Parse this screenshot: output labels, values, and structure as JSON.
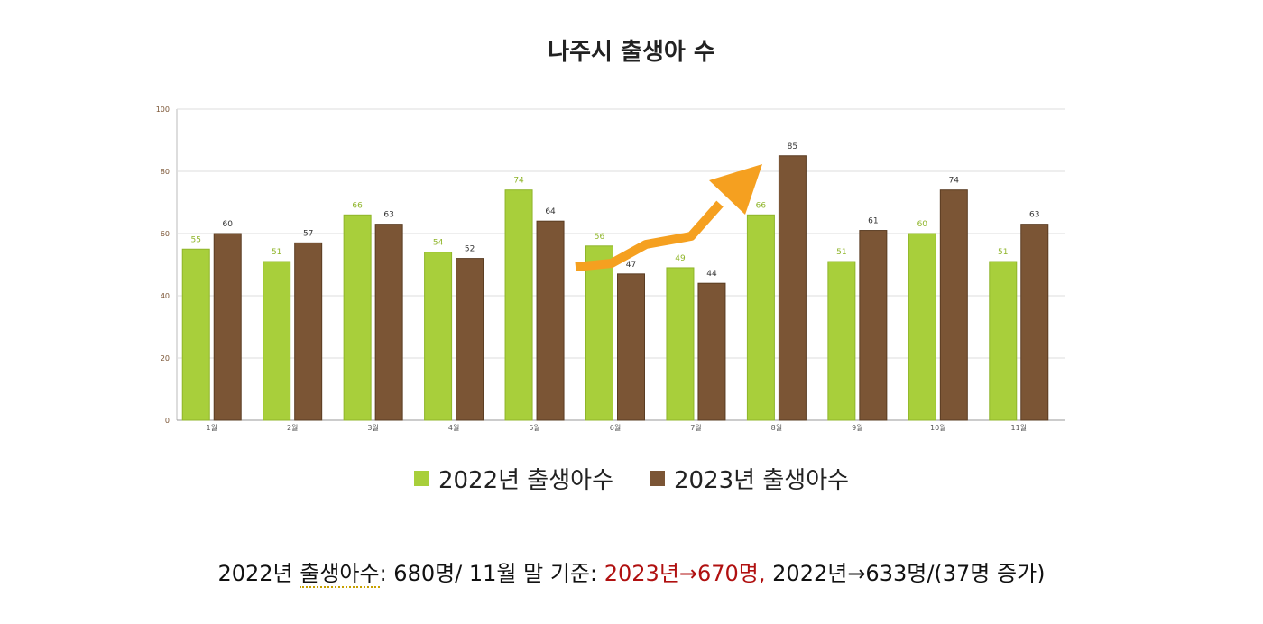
{
  "colors": {
    "series_2022": "#a8cf3b",
    "series_2023": "#7b5535",
    "arrow": "#f5a020",
    "grid": "#dddddd",
    "highlight_text": "#b01010"
  },
  "chart_data": {
    "type": "bar",
    "title": "나주시 출생아 수",
    "xlabel": "",
    "ylabel": "",
    "ylim": [
      0,
      100
    ],
    "yticks": [
      0,
      20,
      40,
      60,
      80,
      100
    ],
    "grid": true,
    "legend_position": "bottom",
    "categories": [
      "1월",
      "2월",
      "3월",
      "4월",
      "5월",
      "6월",
      "7월",
      "8월",
      "9월",
      "10월",
      "11월"
    ],
    "series": [
      {
        "name": "2022년 출생아수",
        "values": [
          55,
          51,
          66,
          54,
          74,
          56,
          49,
          66,
          51,
          60,
          51
        ]
      },
      {
        "name": "2023년 출생아수",
        "values": [
          60,
          57,
          63,
          52,
          64,
          47,
          44,
          85,
          61,
          74,
          63
        ]
      }
    ],
    "annotations": [
      {
        "type": "arrow",
        "description": "upward trend arrow from 6월 to 8월"
      }
    ]
  },
  "caption": {
    "part1": "2022년",
    "part2": "출생아수",
    "part3": ": 680명/ 11월 말 기준: ",
    "part4": "2023년→670명,",
    "part5": " 2022년→633명/(37명 증가)"
  }
}
